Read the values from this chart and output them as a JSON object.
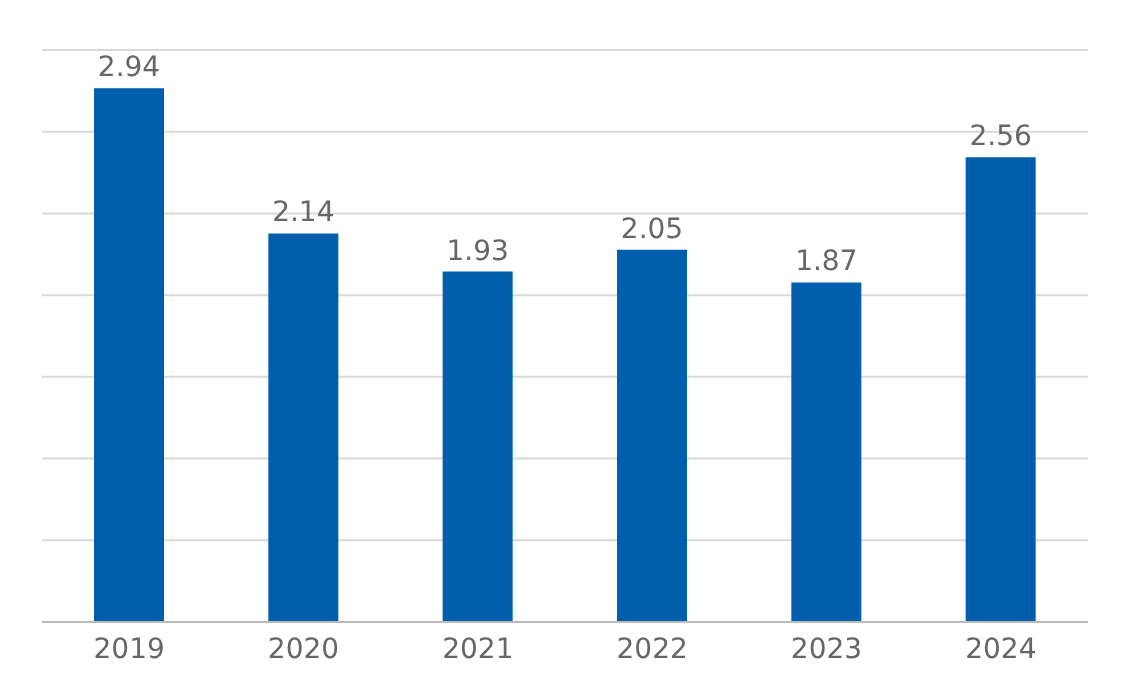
{
  "chart_data": {
    "type": "bar",
    "categories": [
      "2019",
      "2020",
      "2021",
      "2022",
      "2023",
      "2024"
    ],
    "values": [
      2.94,
      2.14,
      1.93,
      2.05,
      1.87,
      2.56
    ],
    "color": "#005fad",
    "grid": "y",
    "tick_labels": "x",
    "data_labels": true
  }
}
